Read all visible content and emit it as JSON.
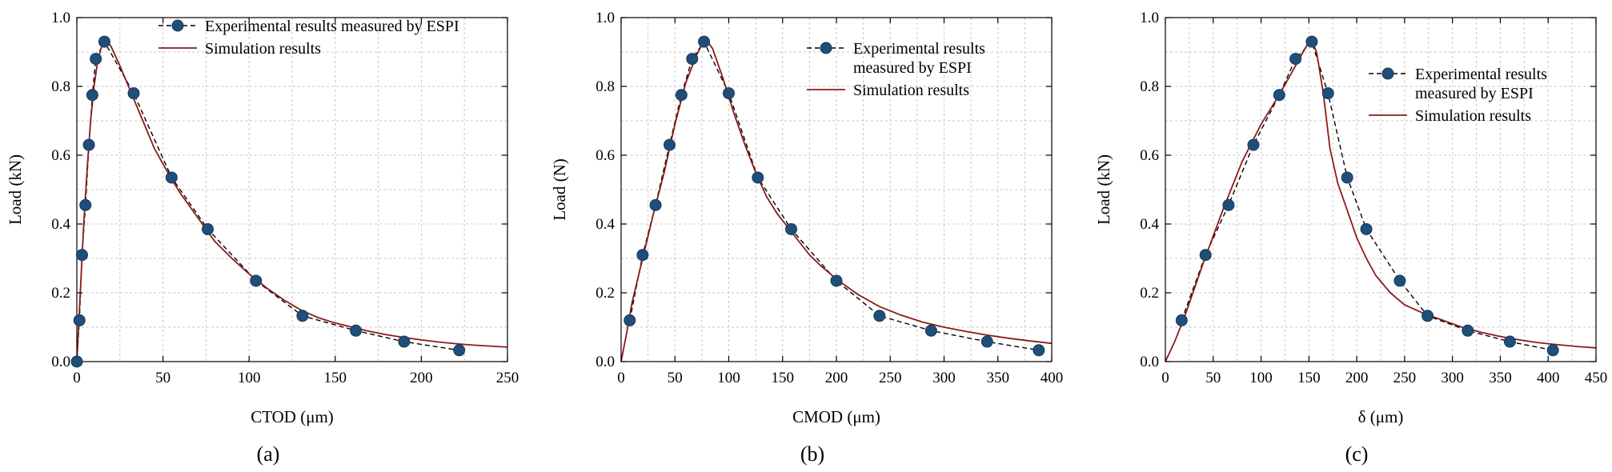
{
  "chart_data": [
    {
      "type": "line",
      "panel_label": "(a)",
      "xlabel": "CTOD (μm)",
      "ylabel": "Load (kN)",
      "xlim": [
        0,
        250
      ],
      "ylim": [
        0,
        1.0
      ],
      "xticks": [
        0,
        50,
        100,
        150,
        200,
        250
      ],
      "xtick_labels": [
        "0",
        "50",
        "100",
        "150",
        "200",
        "250"
      ],
      "yticks": [
        0,
        0.2,
        0.4,
        0.6,
        0.8,
        1.0
      ],
      "ytick_labels": [
        "0.0",
        "0.2",
        "0.4",
        "0.6",
        "0.8",
        "1.0"
      ],
      "grid": true,
      "legend_position": "top-right",
      "series": [
        {
          "name": "Experimental results measured by ESPI",
          "style": "dashed-markers",
          "color": "#1f4e79",
          "x": [
            0,
            1.5,
            3,
            5,
            7,
            9,
            11,
            16,
            33,
            55,
            76,
            104,
            131,
            162,
            190,
            222
          ],
          "y": [
            0,
            0.12,
            0.31,
            0.455,
            0.63,
            0.775,
            0.88,
            0.93,
            0.78,
            0.535,
            0.385,
            0.235,
            0.133,
            0.09,
            0.058,
            0.033
          ]
        },
        {
          "name": "Simulation results",
          "style": "solid",
          "color": "#8b1a1a",
          "x": [
            0,
            2,
            4,
            6,
            8,
            10,
            12,
            14,
            16,
            18,
            20,
            25,
            30,
            35,
            40,
            45,
            50,
            55,
            60,
            65,
            70,
            75,
            80,
            90,
            100,
            110,
            120,
            130,
            140,
            150,
            160,
            170,
            180,
            190,
            200,
            210,
            220,
            230,
            240,
            250
          ],
          "y": [
            0,
            0.2,
            0.4,
            0.56,
            0.7,
            0.8,
            0.87,
            0.91,
            0.935,
            0.93,
            0.915,
            0.86,
            0.8,
            0.74,
            0.68,
            0.62,
            0.575,
            0.53,
            0.49,
            0.455,
            0.42,
            0.385,
            0.35,
            0.3,
            0.255,
            0.215,
            0.18,
            0.15,
            0.128,
            0.112,
            0.1,
            0.088,
            0.078,
            0.07,
            0.063,
            0.057,
            0.052,
            0.048,
            0.045,
            0.042
          ]
        }
      ]
    },
    {
      "type": "line",
      "panel_label": "(b)",
      "xlabel": "CMOD (μm)",
      "ylabel": "Load (N)",
      "xlim": [
        0,
        400
      ],
      "ylim": [
        0,
        1.0
      ],
      "xticks": [
        0,
        50,
        100,
        150,
        200,
        250,
        300,
        350,
        400
      ],
      "xtick_labels": [
        "0",
        "50",
        "100",
        "150",
        "200",
        "250",
        "300",
        "350",
        "400"
      ],
      "yticks": [
        0,
        0.2,
        0.4,
        0.6,
        0.8,
        1.0
      ],
      "ytick_labels": [
        "0.0",
        "0.2",
        "0.4",
        "0.6",
        "0.8",
        "1.0"
      ],
      "grid": true,
      "legend_position": "top-right",
      "series": [
        {
          "name": "Experimental results measured by ESPI",
          "style": "dashed-markers",
          "color": "#1f4e79",
          "x": [
            8,
            20,
            32,
            45,
            56,
            66,
            77,
            100,
            127,
            158,
            200,
            240,
            288,
            340,
            388
          ],
          "y": [
            0.12,
            0.31,
            0.455,
            0.63,
            0.775,
            0.88,
            0.93,
            0.78,
            0.535,
            0.385,
            0.235,
            0.133,
            0.09,
            0.058,
            0.033
          ]
        },
        {
          "name": "Simulation results",
          "style": "solid",
          "color": "#8b1a1a",
          "x": [
            0,
            5,
            10,
            20,
            30,
            40,
            50,
            60,
            70,
            78,
            85,
            95,
            105,
            115,
            125,
            135,
            145,
            155,
            165,
            175,
            185,
            200,
            220,
            240,
            260,
            280,
            300,
            320,
            340,
            360,
            380,
            400
          ],
          "y": [
            0,
            0.08,
            0.17,
            0.3,
            0.43,
            0.55,
            0.69,
            0.81,
            0.89,
            0.94,
            0.91,
            0.82,
            0.72,
            0.63,
            0.55,
            0.48,
            0.43,
            0.39,
            0.35,
            0.31,
            0.28,
            0.24,
            0.195,
            0.16,
            0.135,
            0.115,
            0.1,
            0.088,
            0.077,
            0.068,
            0.06,
            0.053
          ]
        }
      ]
    },
    {
      "type": "line",
      "panel_label": "(c)",
      "xlabel": "δ (μm)",
      "ylabel": "Load (kN)",
      "xlim": [
        0,
        450
      ],
      "ylim": [
        0,
        1.0
      ],
      "xticks": [
        0,
        50,
        100,
        150,
        200,
        250,
        300,
        350,
        400,
        450
      ],
      "xtick_labels": [
        "0",
        "50",
        "100",
        "150",
        "200",
        "250",
        "300",
        "350",
        "400",
        "450"
      ],
      "yticks": [
        0,
        0.2,
        0.4,
        0.6,
        0.8,
        1.0
      ],
      "ytick_labels": [
        "0.0",
        "0.2",
        "0.4",
        "0.6",
        "0.8",
        "1.0"
      ],
      "grid": true,
      "legend_position": "top-right",
      "series": [
        {
          "name": "Experimental results measured by ESPI",
          "style": "dashed-markers",
          "color": "#1f4e79",
          "x": [
            17,
            42,
            66,
            92,
            119,
            136,
            153,
            170,
            190,
            210,
            245,
            274,
            316,
            360,
            405
          ],
          "y": [
            0.12,
            0.31,
            0.455,
            0.63,
            0.775,
            0.88,
            0.93,
            0.78,
            0.535,
            0.385,
            0.235,
            0.133,
            0.09,
            0.058,
            0.033
          ]
        },
        {
          "name": "Simulation results",
          "style": "solid",
          "color": "#8b1a1a",
          "x": [
            0,
            10,
            20,
            40,
            60,
            80,
            100,
            120,
            140,
            152,
            158,
            165,
            172,
            180,
            190,
            200,
            210,
            220,
            235,
            250,
            270,
            290,
            310,
            330,
            350,
            370,
            390,
            410,
            430,
            450
          ],
          "y": [
            0,
            0.06,
            0.13,
            0.29,
            0.44,
            0.58,
            0.69,
            0.78,
            0.88,
            0.94,
            0.9,
            0.78,
            0.62,
            0.52,
            0.44,
            0.36,
            0.3,
            0.25,
            0.2,
            0.165,
            0.14,
            0.12,
            0.1,
            0.085,
            0.073,
            0.063,
            0.055,
            0.049,
            0.044,
            0.04
          ]
        }
      ]
    }
  ]
}
